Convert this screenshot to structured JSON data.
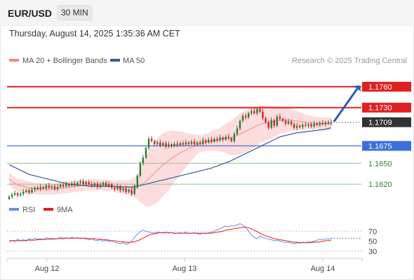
{
  "header": {
    "symbol": "EUR/USD",
    "timeframe": "30 MIN",
    "datetime": "Thursday, August 14, 2025 1:35:36 AM CET"
  },
  "legend": {
    "ma20": "MA 20 + Bollinger Bands",
    "ma50": "MA 50",
    "credit": "Research © 2025 Trading Central",
    "rsi": "RSI",
    "rsi_ma": "9MA"
  },
  "colors": {
    "resistance": "#e02020",
    "support_blue": "#5b7fe0",
    "support_green": "#8fc48f",
    "bollinger_fill": "#fbd6d6",
    "ma20": "#f08a8a",
    "ma50": "#3a5a9a",
    "candle_up": "#2e7d32",
    "candle_down": "#c62828",
    "rsi": "#6b8fd8",
    "rsi_ma": "#e02020",
    "arrow": "#2f5ea8",
    "price_badge": "#333333"
  },
  "chart_data": [
    {
      "type": "candlestick",
      "x_axis": {
        "labels": [
          "Aug 12",
          "Aug 13",
          "Aug 14"
        ]
      },
      "y_range": [
        1.1598,
        1.1784
      ],
      "levels": [
        {
          "label": "1.1760",
          "value": 1.176,
          "kind": "resistance"
        },
        {
          "label": "1.1730",
          "value": 1.173,
          "kind": "resistance"
        },
        {
          "label": "1.1709",
          "value": 1.1709,
          "kind": "current"
        },
        {
          "label": "1.1675",
          "value": 1.1675,
          "kind": "support_blue"
        },
        {
          "label": "1.1650",
          "value": 1.165,
          "kind": "support_green"
        },
        {
          "label": "1.1620",
          "value": 1.162,
          "kind": "support_green"
        }
      ],
      "close": [
        1.1602,
        1.1605,
        1.1607,
        1.1604,
        1.1606,
        1.1609,
        1.1611,
        1.1608,
        1.1612,
        1.1615,
        1.1613,
        1.1616,
        1.1614,
        1.1618,
        1.1615,
        1.1617,
        1.1613,
        1.1616,
        1.1619,
        1.1617,
        1.162,
        1.1618,
        1.1621,
        1.1619,
        1.1622,
        1.1624,
        1.162,
        1.1623,
        1.162,
        1.1618,
        1.1621,
        1.1616,
        1.1619,
        1.1622,
        1.1618,
        1.162,
        1.1615,
        1.1613,
        1.1617,
        1.1611,
        1.1614,
        1.1609,
        1.1612,
        1.1606,
        1.1616,
        1.1632,
        1.165,
        1.1658,
        1.1672,
        1.1685,
        1.1682,
        1.1678,
        1.168,
        1.1676,
        1.1679,
        1.1674,
        1.1677,
        1.1675,
        1.1678,
        1.1676,
        1.1679,
        1.1677,
        1.168,
        1.1678,
        1.1681,
        1.1677,
        1.168,
        1.1678,
        1.1683,
        1.168,
        1.1684,
        1.1681,
        1.1685,
        1.1683,
        1.1687,
        1.1684,
        1.1688,
        1.1686,
        1.1682,
        1.1692,
        1.17,
        1.1711,
        1.1718,
        1.1716,
        1.1722,
        1.1725,
        1.1722,
        1.1728,
        1.1724,
        1.1715,
        1.1709,
        1.1701,
        1.1712,
        1.1704,
        1.1717,
        1.1714,
        1.1711,
        1.1707,
        1.171,
        1.1706,
        1.1701,
        1.1704,
        1.1702,
        1.1705,
        1.1704,
        1.1706,
        1.1703,
        1.1707,
        1.1705,
        1.1708,
        1.1706,
        1.1709,
        1.1707,
        1.1709
      ],
      "ma20": [
        1.1628,
        1.1624,
        1.1621,
        1.1619,
        1.1618,
        1.1617,
        1.1616,
        1.1615,
        1.1614,
        1.1614,
        1.1613,
        1.1613,
        1.1613,
        1.1613,
        1.1613,
        1.1613,
        1.1613,
        1.1614,
        1.1614,
        1.1615,
        1.1615,
        1.1616,
        1.1616,
        1.1617,
        1.1617,
        1.1618,
        1.1618,
        1.1619,
        1.1619,
        1.1619,
        1.1619,
        1.1619,
        1.1619,
        1.1619,
        1.1618,
        1.1618,
        1.1618,
        1.1617,
        1.1617,
        1.1617,
        1.1616,
        1.1616,
        1.1615,
        1.1615,
        1.1615,
        1.1616,
        1.1618,
        1.1621,
        1.1624,
        1.1628,
        1.1632,
        1.1636,
        1.164,
        1.1644,
        1.1648,
        1.1651,
        1.1654,
        1.1657,
        1.166,
        1.1662,
        1.1665,
        1.1667,
        1.1669,
        1.1671,
        1.1673,
        1.1675,
        1.1677,
        1.1678,
        1.1679,
        1.168,
        1.1681,
        1.1682,
        1.1683,
        1.1683,
        1.1684,
        1.1685,
        1.1686,
        1.1686,
        1.1687,
        1.1688,
        1.169,
        1.1692,
        1.1694,
        1.1696,
        1.1698,
        1.17,
        1.1702,
        1.1704,
        1.1706,
        1.1707,
        1.1708,
        1.1708,
        1.1709,
        1.171,
        1.1711,
        1.1712,
        1.1712,
        1.1712,
        1.1712,
        1.1712,
        1.1711,
        1.1711,
        1.171,
        1.171,
        1.1709,
        1.1709,
        1.1708,
        1.1708,
        1.1708,
        1.1707,
        1.1707,
        1.1707,
        1.1707,
        1.1707
      ],
      "bb_width": [
        0.0009,
        0.0009,
        0.0009,
        0.0009,
        0.0009,
        0.0009,
        0.0009,
        0.0009,
        0.0008,
        0.0008,
        0.0008,
        0.0008,
        0.0008,
        0.0008,
        0.0008,
        0.0008,
        0.0008,
        0.0008,
        0.0008,
        0.0008,
        0.0008,
        0.0008,
        0.0008,
        0.0008,
        0.0008,
        0.0008,
        0.0008,
        0.0008,
        0.0008,
        0.0008,
        0.0008,
        0.0008,
        0.0008,
        0.0008,
        0.0008,
        0.0008,
        0.0008,
        0.0008,
        0.0009,
        0.0009,
        0.001,
        0.001,
        0.0011,
        0.0012,
        0.0014,
        0.0018,
        0.0024,
        0.003,
        0.0036,
        0.004,
        0.0043,
        0.0045,
        0.0046,
        0.0046,
        0.0045,
        0.0044,
        0.0042,
        0.004,
        0.0037,
        0.0034,
        0.0031,
        0.0028,
        0.0025,
        0.0022,
        0.0019,
        0.0016,
        0.0014,
        0.0012,
        0.0012,
        0.0012,
        0.0013,
        0.0014,
        0.0015,
        0.0016,
        0.0017,
        0.0019,
        0.0021,
        0.0023,
        0.0025,
        0.0027,
        0.0028,
        0.0029,
        0.003,
        0.003,
        0.003,
        0.003,
        0.0029,
        0.0028,
        0.0027,
        0.0026,
        0.0025,
        0.0024,
        0.0023,
        0.0022,
        0.0021,
        0.002,
        0.0019,
        0.0018,
        0.0017,
        0.0016,
        0.0015,
        0.0014,
        0.0013,
        0.0012,
        0.0011,
        0.001,
        0.001,
        0.0009,
        0.0009,
        0.0009,
        0.0009,
        0.0009,
        0.0009,
        0.0009
      ],
      "ma50": [
        1.1648,
        1.1646,
        1.1644,
        1.1642,
        1.164,
        1.1638,
        1.1636,
        1.1634,
        1.1633,
        1.1632,
        1.1631,
        1.163,
        1.1629,
        1.1628,
        1.1627,
        1.1626,
        1.1625,
        1.1624,
        1.1623,
        1.1622,
        1.1621,
        1.162,
        1.162,
        1.1619,
        1.1619,
        1.1618,
        1.1618,
        1.1618,
        1.1617,
        1.1617,
        1.1617,
        1.1617,
        1.1617,
        1.1617,
        1.1617,
        1.1617,
        1.1617,
        1.1617,
        1.1616,
        1.1616,
        1.1616,
        1.1616,
        1.1616,
        1.1616,
        1.1617,
        1.1617,
        1.1618,
        1.1619,
        1.162,
        1.1621,
        1.1622,
        1.1623,
        1.1624,
        1.1625,
        1.1626,
        1.1627,
        1.1628,
        1.1629,
        1.163,
        1.1631,
        1.1632,
        1.1633,
        1.1634,
        1.1635,
        1.1636,
        1.1637,
        1.1638,
        1.1639,
        1.164,
        1.1641,
        1.1642,
        1.1643,
        1.1645,
        1.1646,
        1.1648,
        1.1649,
        1.1651,
        1.1652,
        1.1654,
        1.1656,
        1.1658,
        1.166,
        1.1662,
        1.1664,
        1.1666,
        1.1668,
        1.167,
        1.1672,
        1.1674,
        1.1676,
        1.1678,
        1.168,
        1.1682,
        1.1684,
        1.1686,
        1.1688,
        1.1689,
        1.169,
        1.1691,
        1.1692,
        1.1693,
        1.1694,
        1.1694,
        1.1695,
        1.1695,
        1.1696,
        1.1696,
        1.1697,
        1.1697,
        1.1698,
        1.1698,
        1.1699,
        1.17,
        1.1701
      ]
    },
    {
      "type": "line",
      "title": "RSI",
      "y_ticks": [
        "70",
        "50",
        "30"
      ],
      "y_range": [
        20,
        90
      ],
      "rsi": [
        48,
        52,
        49,
        54,
        51,
        53,
        50,
        55,
        52,
        56,
        54,
        55,
        53,
        57,
        55,
        56,
        54,
        55,
        58,
        56,
        57,
        55,
        58,
        56,
        57,
        55,
        56,
        54,
        53,
        55,
        52,
        51,
        53,
        50,
        52,
        49,
        51,
        48,
        46,
        45,
        47,
        44,
        46,
        50,
        58,
        64,
        69,
        72,
        70,
        68,
        67,
        66,
        68,
        67,
        66,
        68,
        66,
        67,
        65,
        66,
        67,
        66,
        68,
        65,
        66,
        67,
        65,
        64,
        66,
        65,
        67,
        68,
        70,
        73,
        75,
        78,
        80,
        79,
        81,
        80,
        83,
        85,
        82,
        78,
        70,
        62,
        58,
        55,
        60,
        57,
        56,
        54,
        53,
        51,
        52,
        50,
        49,
        47,
        48,
        46,
        45,
        47,
        46,
        48,
        47,
        49,
        48,
        50,
        52,
        54,
        53,
        55,
        54,
        56
      ],
      "rsi_ma": [
        51,
        51,
        51,
        51,
        51,
        51,
        52,
        52,
        52,
        52,
        53,
        53,
        53,
        54,
        54,
        54,
        55,
        55,
        55,
        55,
        56,
        56,
        56,
        56,
        56,
        56,
        56,
        56,
        55,
        55,
        55,
        54,
        54,
        53,
        53,
        52,
        51,
        51,
        50,
        49,
        49,
        48,
        48,
        48,
        49,
        51,
        53,
        56,
        59,
        62,
        64,
        65,
        66,
        67,
        67,
        67,
        67,
        67,
        66,
        66,
        66,
        66,
        66,
        66,
        66,
        66,
        66,
        66,
        66,
        66,
        66,
        66,
        67,
        68,
        69,
        70,
        72,
        73,
        74,
        75,
        76,
        77,
        78,
        78,
        77,
        75,
        72,
        69,
        66,
        63,
        61,
        59,
        57,
        55,
        54,
        53,
        52,
        51,
        50,
        49,
        48,
        48,
        47,
        47,
        47,
        47,
        47,
        48,
        48,
        49,
        50,
        51,
        51,
        52
      ]
    }
  ]
}
